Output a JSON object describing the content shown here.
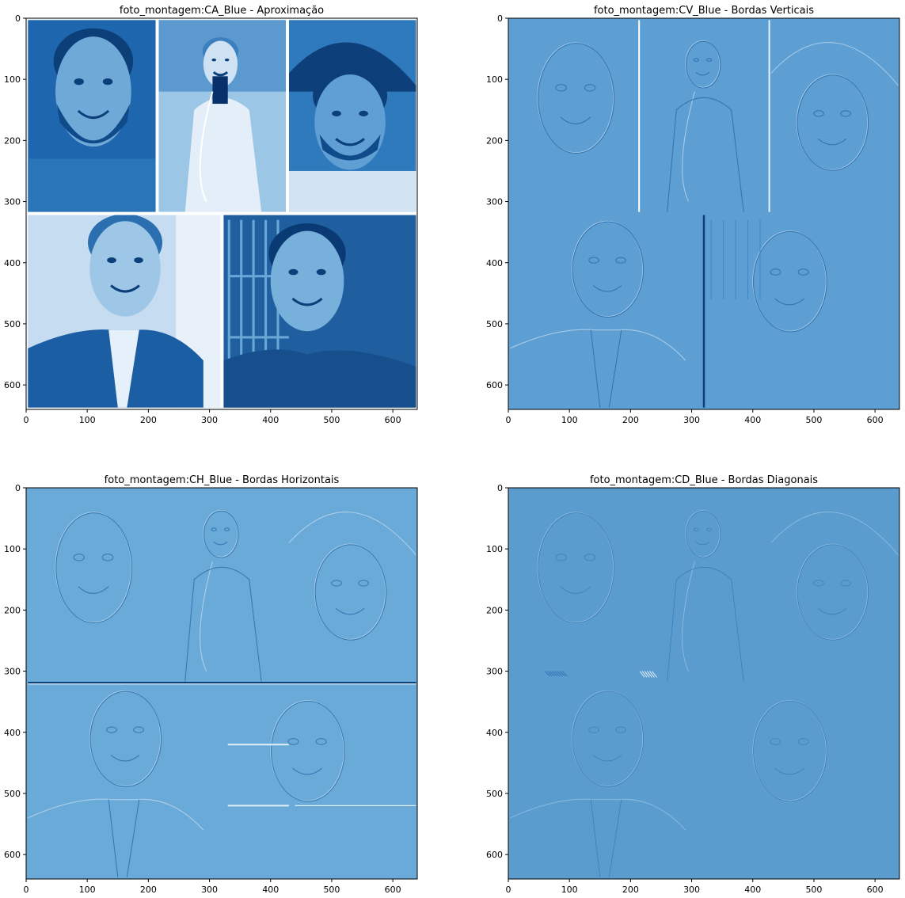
{
  "figure": {
    "background": "#ffffff",
    "colormap": "Blues"
  },
  "chart_data": [
    {
      "type": "heatmap",
      "title": "foto_montagem:CA_Blue - Aproximação",
      "content": "approximation",
      "x_ticks": [
        0,
        100,
        200,
        300,
        400,
        500,
        600
      ],
      "y_ticks": [
        0,
        100,
        200,
        300,
        400,
        500,
        600
      ],
      "xlim": [
        0,
        640
      ],
      "ylim": [
        640,
        0
      ],
      "base_color": "#2a6fb3"
    },
    {
      "type": "heatmap",
      "title": "foto_montagem:CV_Blue - Bordas Verticais",
      "content": "vertical-edges",
      "x_ticks": [
        0,
        100,
        200,
        300,
        400,
        500,
        600
      ],
      "y_ticks": [
        0,
        100,
        200,
        300,
        400,
        500,
        600
      ],
      "xlim": [
        0,
        640
      ],
      "ylim": [
        640,
        0
      ],
      "base_color": "#5d9fd3"
    },
    {
      "type": "heatmap",
      "title": "foto_montagem:CH_Blue - Bordas Horizontais",
      "content": "horizontal-edges",
      "x_ticks": [
        0,
        100,
        200,
        300,
        400,
        500,
        600
      ],
      "y_ticks": [
        0,
        100,
        200,
        300,
        400,
        500,
        600
      ],
      "xlim": [
        0,
        640
      ],
      "ylim": [
        640,
        0
      ],
      "base_color": "#69aad8"
    },
    {
      "type": "heatmap",
      "title": "foto_montagem:CD_Blue - Bordas Diagonais",
      "content": "diagonal-edges",
      "x_ticks": [
        0,
        100,
        200,
        300,
        400,
        500,
        600
      ],
      "y_ticks": [
        0,
        100,
        200,
        300,
        400,
        500,
        600
      ],
      "xlim": [
        0,
        640
      ],
      "ylim": [
        640,
        0
      ],
      "base_color": "#5b9ccf"
    }
  ]
}
